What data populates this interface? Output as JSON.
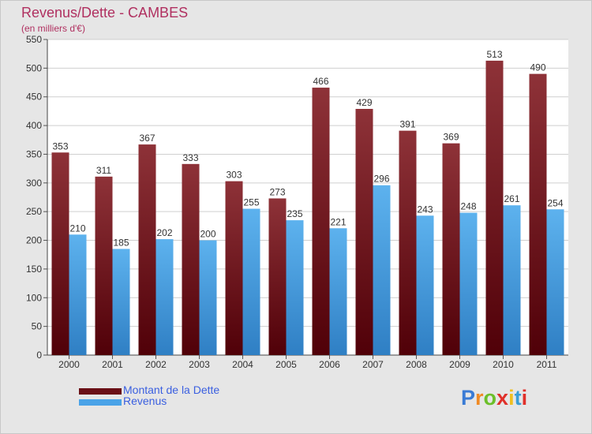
{
  "chart_data": {
    "type": "bar",
    "title": "Revenus/Dette - CAMBES",
    "subtitle": "(en milliers d'€)",
    "categories": [
      "2000",
      "2001",
      "2002",
      "2003",
      "2004",
      "2005",
      "2006",
      "2007",
      "2008",
      "2009",
      "2010",
      "2011"
    ],
    "series": [
      {
        "name": "Montant de la Dette",
        "color": "#7a1e24",
        "values": [
          353,
          311,
          367,
          333,
          303,
          273,
          466,
          429,
          391,
          369,
          513,
          490
        ]
      },
      {
        "name": "Revenus",
        "color": "#4aa3e8",
        "values": [
          210,
          185,
          202,
          200,
          255,
          235,
          221,
          296,
          243,
          248,
          261,
          254
        ]
      }
    ],
    "ylim": [
      0,
      550
    ],
    "yticks": [
      0,
      50,
      100,
      150,
      200,
      250,
      300,
      350,
      400,
      450,
      500,
      550
    ],
    "grid": true,
    "legend_position": "bottom-left"
  },
  "logo_text": "Proxiti"
}
